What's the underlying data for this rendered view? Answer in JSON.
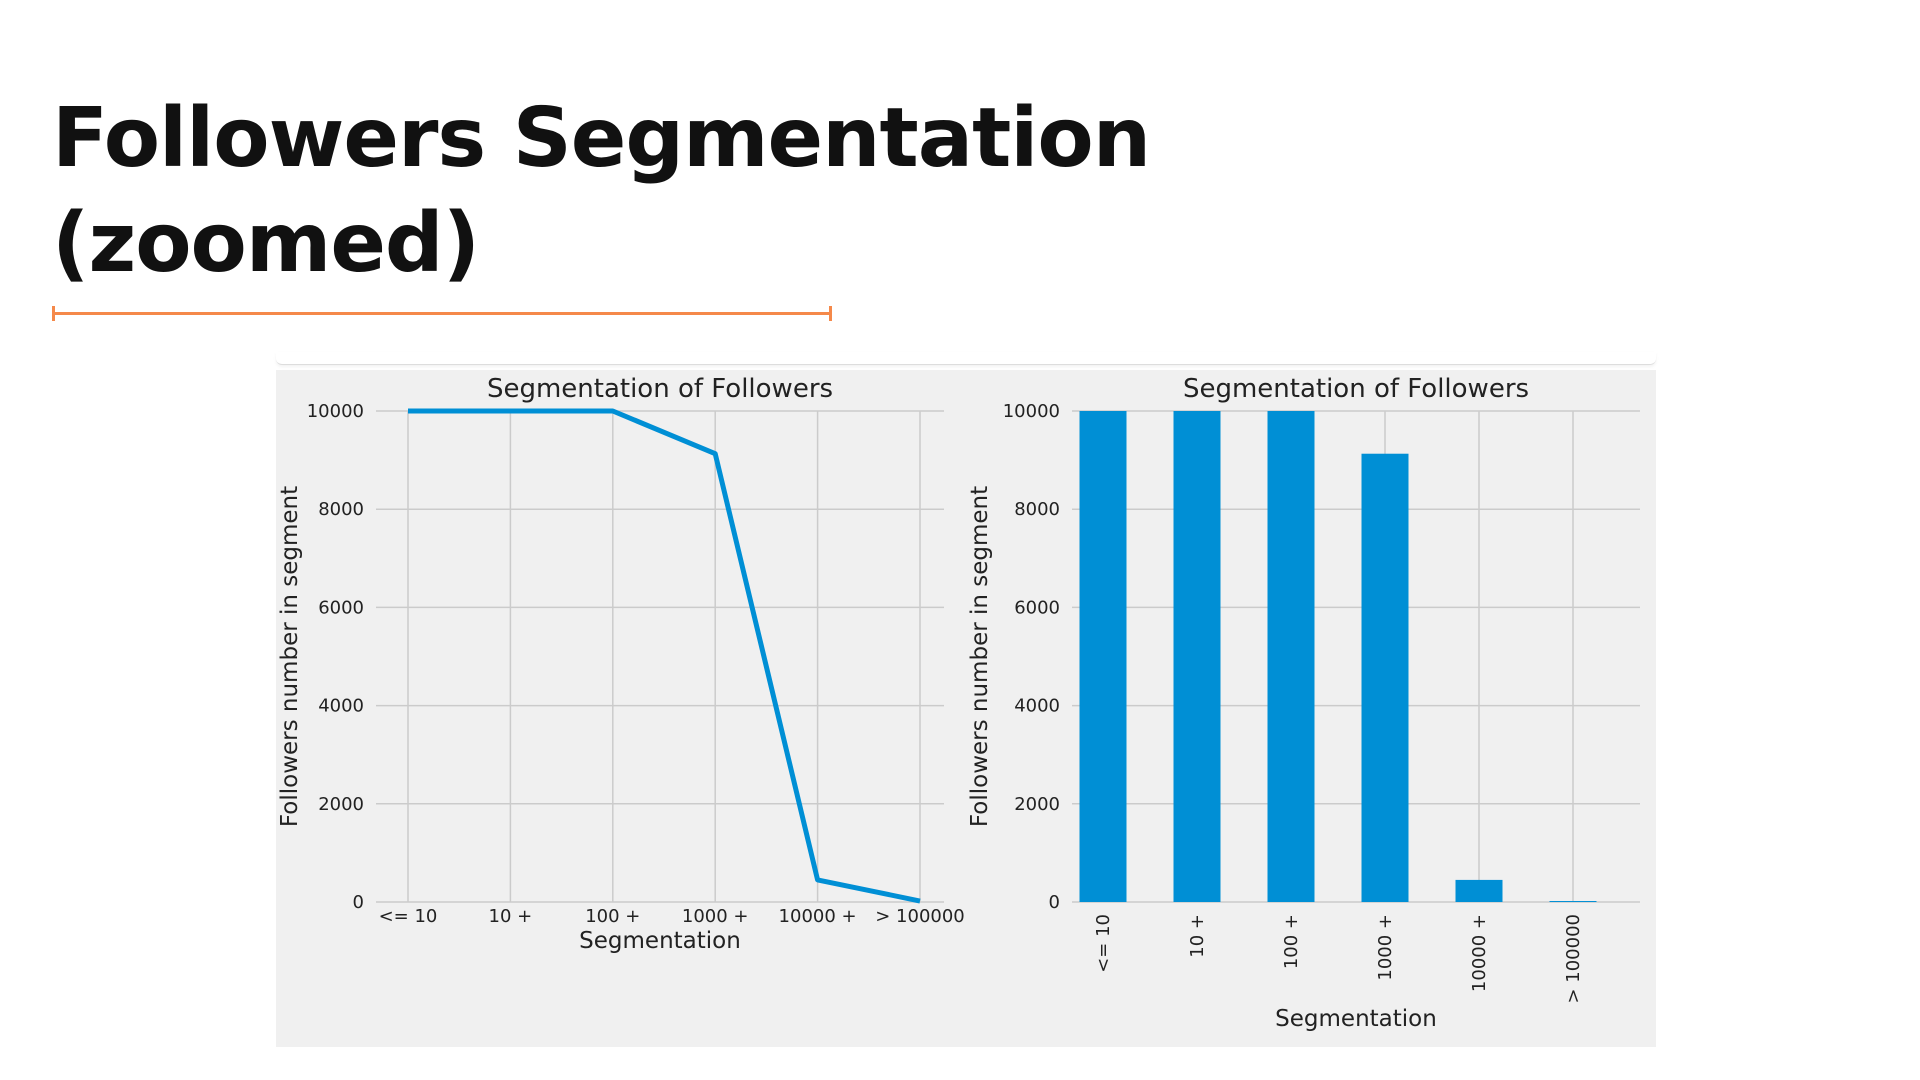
{
  "slide": {
    "title_line1": "Followers Segmentation",
    "title_line2": "(zoomed)",
    "accent_color": "#f5894a"
  },
  "chart_data": [
    {
      "type": "line",
      "title": "Segmentation of Followers",
      "xlabel": "Segmentation",
      "ylabel": "Followers number in segment",
      "categories": [
        "<= 10",
        "10 +",
        "100 +",
        "1000 +",
        "10000 +",
        "> 100000"
      ],
      "values": [
        10000,
        10000,
        10000,
        9130,
        450,
        20
      ],
      "ylim": [
        0,
        10000
      ],
      "yticks": [
        0,
        2000,
        4000,
        6000,
        8000,
        10000
      ],
      "grid": true,
      "color": "#008fd5"
    },
    {
      "type": "bar",
      "title": "Segmentation of Followers",
      "xlabel": "Segmentation",
      "ylabel": "Followers number in segment",
      "categories": [
        "<= 10",
        "10 +",
        "100 +",
        "1000 +",
        "10000 +",
        "> 100000"
      ],
      "values": [
        10000,
        10000,
        10000,
        9130,
        450,
        20
      ],
      "ylim": [
        0,
        10000
      ],
      "yticks": [
        0,
        2000,
        4000,
        6000,
        8000,
        10000
      ],
      "grid": true,
      "color": "#008fd5"
    }
  ]
}
